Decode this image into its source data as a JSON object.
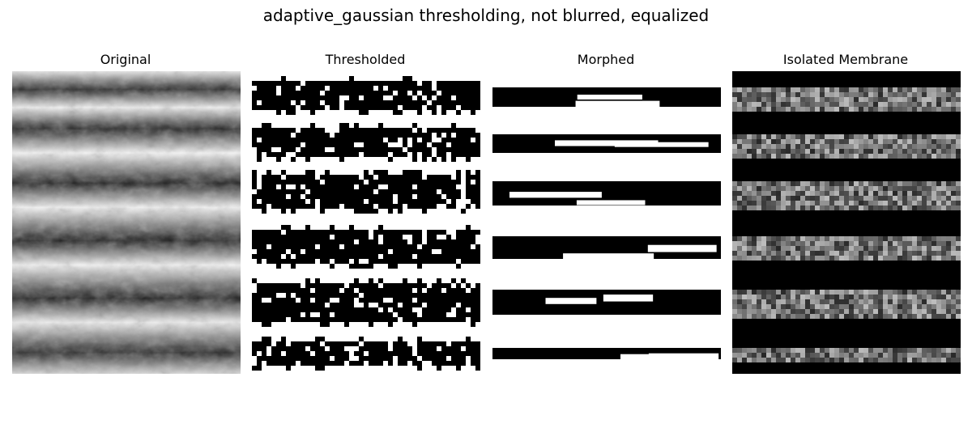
{
  "figure": {
    "title": "adaptive_gaussian thresholding, not blurred, equalized"
  },
  "panels": [
    {
      "title": "Original",
      "kind": "grayscale-texture"
    },
    {
      "title": "Thresholded",
      "kind": "binary-noisy"
    },
    {
      "title": "Morphed",
      "kind": "binary-clean"
    },
    {
      "title": "Isolated Membrane",
      "kind": "masked-grayscale"
    }
  ],
  "colors": {
    "background": "#ffffff",
    "ink": "#000000"
  }
}
